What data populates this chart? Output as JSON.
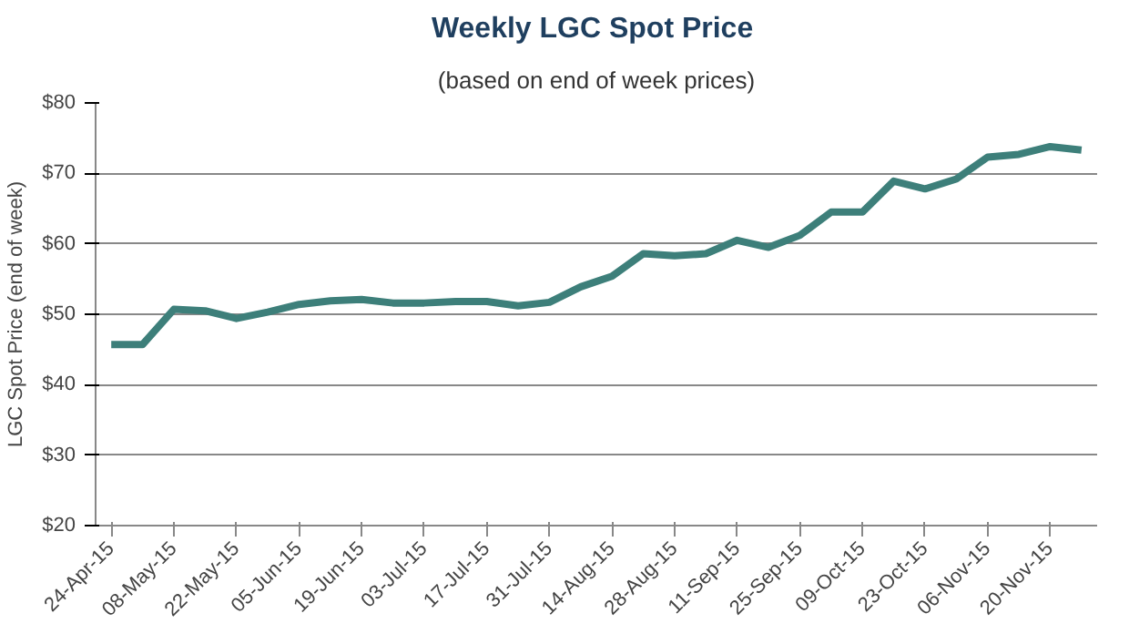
{
  "chart_data": {
    "type": "line",
    "title": "Weekly LGC  Spot Price",
    "subtitle": "(based on end of week prices)",
    "ylabel": "LGC Spot Price (end of week)",
    "categories": [
      "24-Apr-15",
      null,
      "08-May-15",
      null,
      "22-May-15",
      null,
      "05-Jun-15",
      null,
      "19-Jun-15",
      null,
      "03-Jul-15",
      null,
      "17-Jul-15",
      null,
      "31-Jul-15",
      null,
      "14-Aug-15",
      null,
      "28-Aug-15",
      null,
      "11-Sep-15",
      null,
      "25-Sep-15",
      null,
      "09-Oct-15",
      null,
      "23-Oct-15",
      null,
      "06-Nov-15",
      null,
      "20-Nov-15",
      null
    ],
    "series": [
      {
        "color": "#3d7f7a",
        "values": [
          45.7,
          45.7,
          50.7,
          50.5,
          49.4,
          50.3,
          51.4,
          51.9,
          52.1,
          51.6,
          51.6,
          51.8,
          51.8,
          51.2,
          51.7,
          53.9,
          55.4,
          58.6,
          58.3,
          58.6,
          60.5,
          59.5,
          61.2,
          64.5,
          64.5,
          68.9,
          67.8,
          69.2,
          72.3,
          72.7,
          73.8,
          73.3
        ]
      }
    ],
    "ylim": [
      20,
      80
    ],
    "yticks": [
      {
        "value": 20,
        "label": "$20"
      },
      {
        "value": 30,
        "label": "$30"
      },
      {
        "value": 40,
        "label": "$40"
      },
      {
        "value": 50,
        "label": "$50"
      },
      {
        "value": 60,
        "label": "$60"
      },
      {
        "value": 70,
        "label": "$70"
      },
      {
        "value": 80,
        "label": "$80"
      }
    ],
    "grid": "y",
    "marker": "none",
    "line_style": "solid"
  }
}
